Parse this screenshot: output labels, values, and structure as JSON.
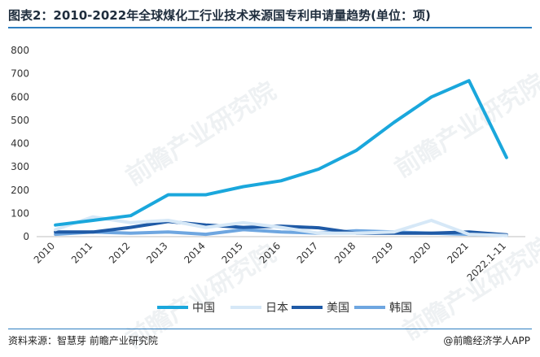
{
  "header": {
    "title": "图表2：2010-2022年全球煤化工行业技术来源国专利申请量趋势(单位：项)"
  },
  "footer": {
    "source": "资料来源：智慧芽 前瞻产业研究院",
    "credit": "@前瞻经济学人APP"
  },
  "watermark": {
    "text": "前瞻产业研究院"
  },
  "chart_data": {
    "type": "line",
    "title": "图表2：2010-2022年全球煤化工行业技术来源国专利申请量趋势(单位：项)",
    "xlabel": "",
    "ylabel": "",
    "ylim": [
      0,
      800
    ],
    "yticks": [
      0,
      100,
      200,
      300,
      400,
      500,
      600,
      700,
      800
    ],
    "categories": [
      "2010",
      "2011",
      "2012",
      "2013",
      "2014",
      "2015",
      "2016",
      "2017",
      "2018",
      "2019",
      "2020",
      "2021",
      "2022.1-11"
    ],
    "series": [
      {
        "name": "中国",
        "color": "#1aa7dc",
        "values": [
          50,
          70,
          90,
          180,
          180,
          215,
          240,
          290,
          370,
          490,
          600,
          670,
          340
        ]
      },
      {
        "name": "日本",
        "color": "#d6e8f7",
        "values": [
          30,
          85,
          60,
          70,
          40,
          60,
          40,
          15,
          15,
          20,
          70,
          10,
          5
        ]
      },
      {
        "name": "美国",
        "color": "#1f5aa6",
        "values": [
          20,
          20,
          40,
          65,
          50,
          40,
          45,
          38,
          15,
          15,
          15,
          20,
          8
        ]
      },
      {
        "name": "韩国",
        "color": "#6ea6e0",
        "values": [
          10,
          20,
          15,
          20,
          10,
          30,
          20,
          15,
          25,
          20,
          15,
          10,
          5
        ]
      }
    ],
    "legend": "bottom"
  }
}
